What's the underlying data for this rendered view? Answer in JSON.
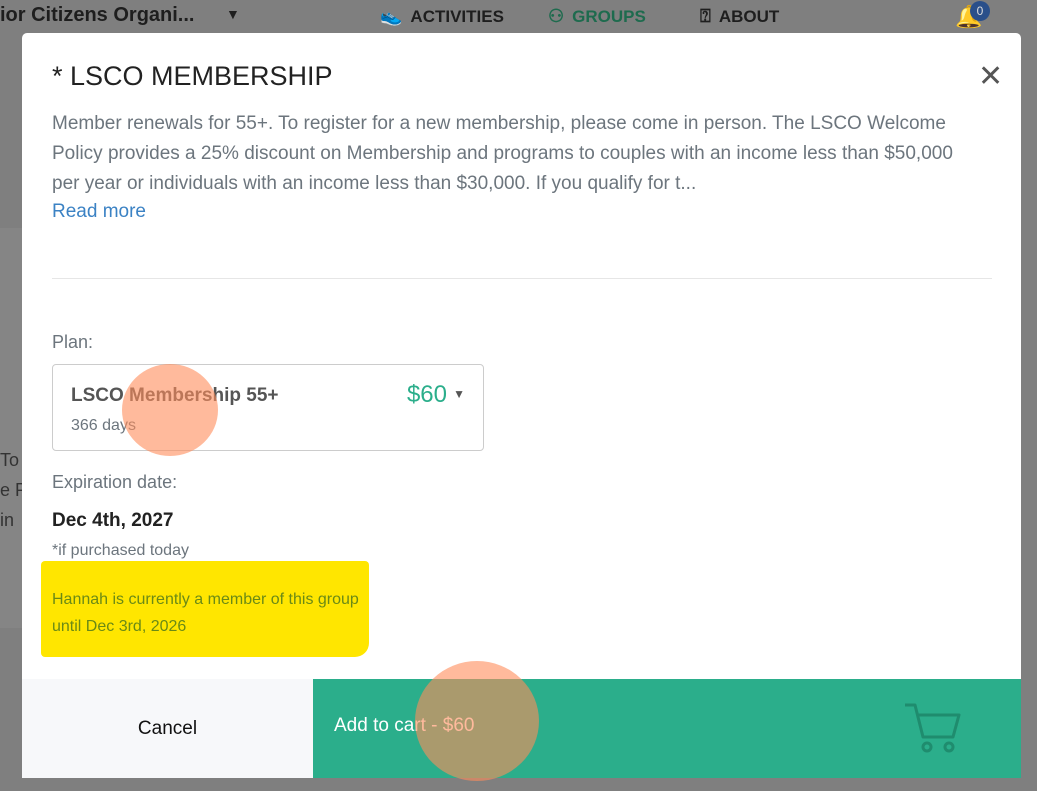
{
  "topbar": {
    "org_name": "ior Citizens Organi...",
    "nav": [
      {
        "label": "ACTIVITIES",
        "icon": "shoe-icon"
      },
      {
        "label": "GROUPS",
        "icon": "people-icon"
      },
      {
        "label": "ABOUT",
        "icon": "help-icon"
      }
    ],
    "notification_count": "0",
    "colors": {
      "active": "#1e6b4e"
    }
  },
  "background_fragments": [
    "To",
    "e P",
    "in"
  ],
  "modal": {
    "title": "* LSCO MEMBERSHIP",
    "description": "Member renewals for 55+. To register for a new membership, please come in person. The LSCO Welcome Policy provides a 25% discount on Membership and programs to couples with an income less than $50,000 per year or individuals with an income less than $30,000. If you qualify for t...",
    "read_more": "Read more",
    "plan_label": "Plan:",
    "plan": {
      "name": "LSCO Membership 55+",
      "duration": "366 days",
      "price": "$60"
    },
    "expiration_label": "Expiration date:",
    "expiration_date": "Dec 4th, 2027",
    "expiration_note": "*if purchased today",
    "member_status": "Hannah is currently a member of this group until Dec 3rd, 2026",
    "cancel_label": "Cancel",
    "add_label": "Add to cart - $60",
    "colors": {
      "accent": "#2bae8b",
      "link": "#3b82c4",
      "highlight": "#ffe600"
    }
  }
}
